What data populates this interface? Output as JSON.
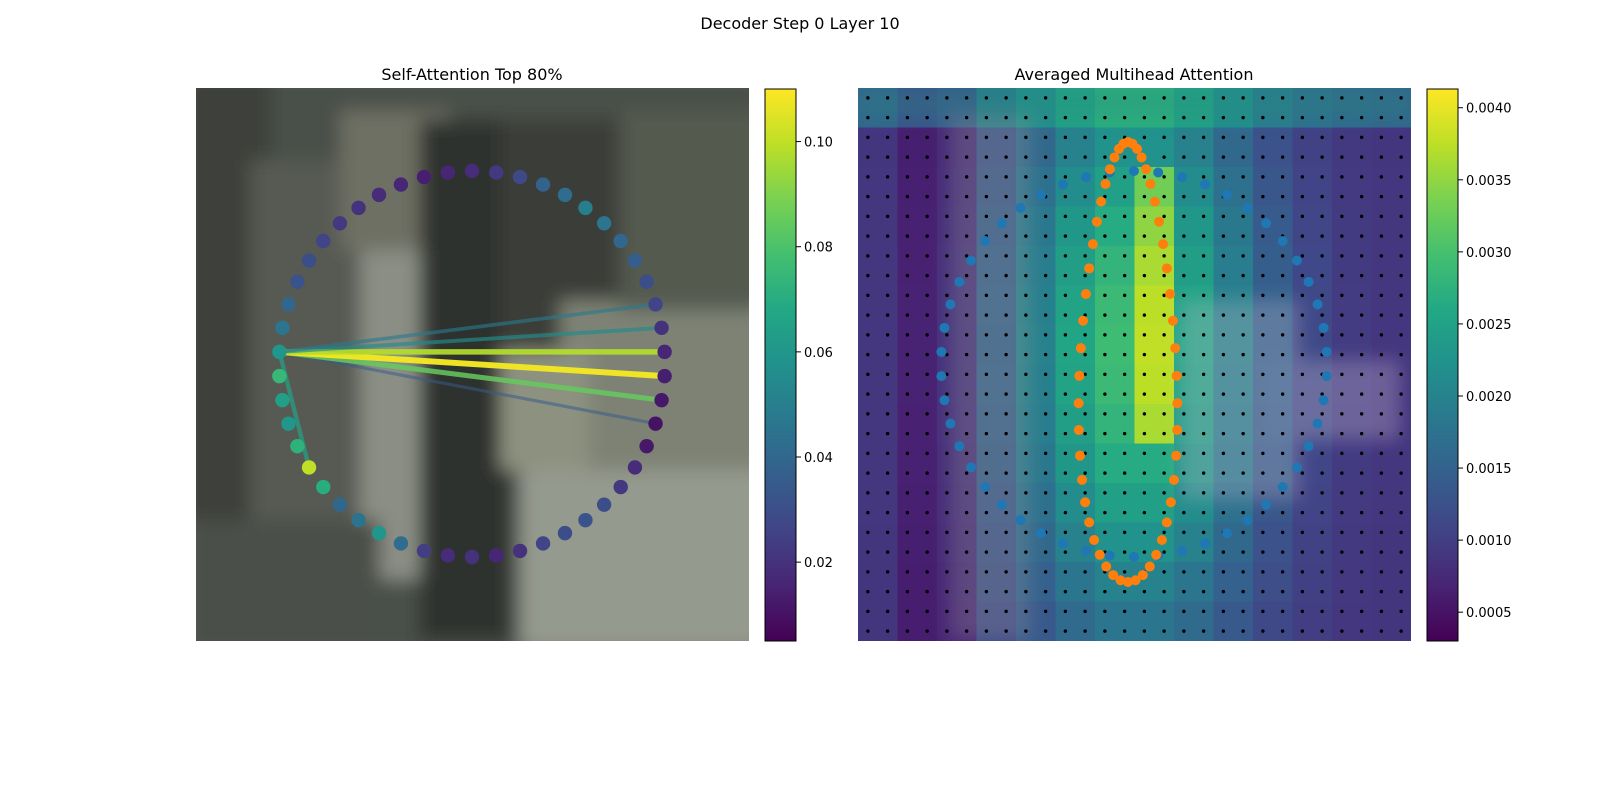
{
  "figure": {
    "suptitle": "Decoder Step 0 Layer 10"
  },
  "colormap": {
    "name": "viridis",
    "stops": [
      "#440154",
      "#482475",
      "#414487",
      "#355f8d",
      "#2a788e",
      "#21918c",
      "#22a884",
      "#44bf70",
      "#7ad151",
      "#bddf26",
      "#fde725"
    ]
  },
  "point_colors": {
    "blue": "#1f77b4",
    "orange": "#ff7f0e",
    "grid_dots": "#000000"
  },
  "chart_data": [
    {
      "type": "scatter",
      "subtype": "circular attention graph over image",
      "title": "Self-Attention Top 80%",
      "n_nodes": 50,
      "node_weights": [
        0.018,
        0.022,
        0.028,
        0.038,
        0.042,
        0.05,
        0.046,
        0.04,
        0.036,
        0.03,
        0.026,
        0.02,
        0.016,
        0.014,
        0.012,
        0.01,
        0.012,
        0.018,
        0.022,
        0.03,
        0.032,
        0.03,
        0.026,
        0.02,
        0.016,
        0.02,
        0.018,
        0.024,
        0.042,
        0.06,
        0.045,
        0.04,
        0.07,
        0.1,
        0.072,
        0.06,
        0.064,
        0.075,
        0.06,
        0.046,
        0.04,
        0.032,
        0.03,
        0.026,
        0.022,
        0.02,
        0.018,
        0.016,
        0.014,
        0.016
      ],
      "edges": [
        {
          "from": 38,
          "to": 33,
          "weight": 0.065
        },
        {
          "from": 38,
          "to": 15,
          "weight": 0.035
        },
        {
          "from": 38,
          "to": 14,
          "weight": 0.085
        },
        {
          "from": 38,
          "to": 13,
          "weight": 0.108
        },
        {
          "from": 38,
          "to": 12,
          "weight": 0.098
        },
        {
          "from": 38,
          "to": 11,
          "weight": 0.055
        },
        {
          "from": 38,
          "to": 10,
          "weight": 0.048
        }
      ],
      "colorbar": {
        "range": [
          0.005,
          0.11
        ],
        "ticks": [
          "0.02",
          "0.04",
          "0.06",
          "0.08",
          "0.10"
        ],
        "tick_values": [
          0.02,
          0.04,
          0.06,
          0.08,
          0.1
        ]
      }
    },
    {
      "type": "heatmap",
      "subtype": "attention heatmap with keypoint overlay",
      "title": "Averaged Multihead Attention",
      "grid_rows": 28,
      "grid_cols": 28,
      "heatmap_cells": 14,
      "colorbar": {
        "range": [
          0.0003,
          0.00413
        ],
        "ticks": [
          "0.0005",
          "0.0010",
          "0.0015",
          "0.0020",
          "0.0025",
          "0.0030",
          "0.0035",
          "0.0040"
        ],
        "tick_values": [
          0.0005,
          0.001,
          0.0015,
          0.002,
          0.0025,
          0.003,
          0.0035,
          0.004
        ]
      },
      "series": [
        {
          "color": "blue",
          "count": 50
        },
        {
          "color": "orange",
          "count": 50
        }
      ]
    }
  ]
}
